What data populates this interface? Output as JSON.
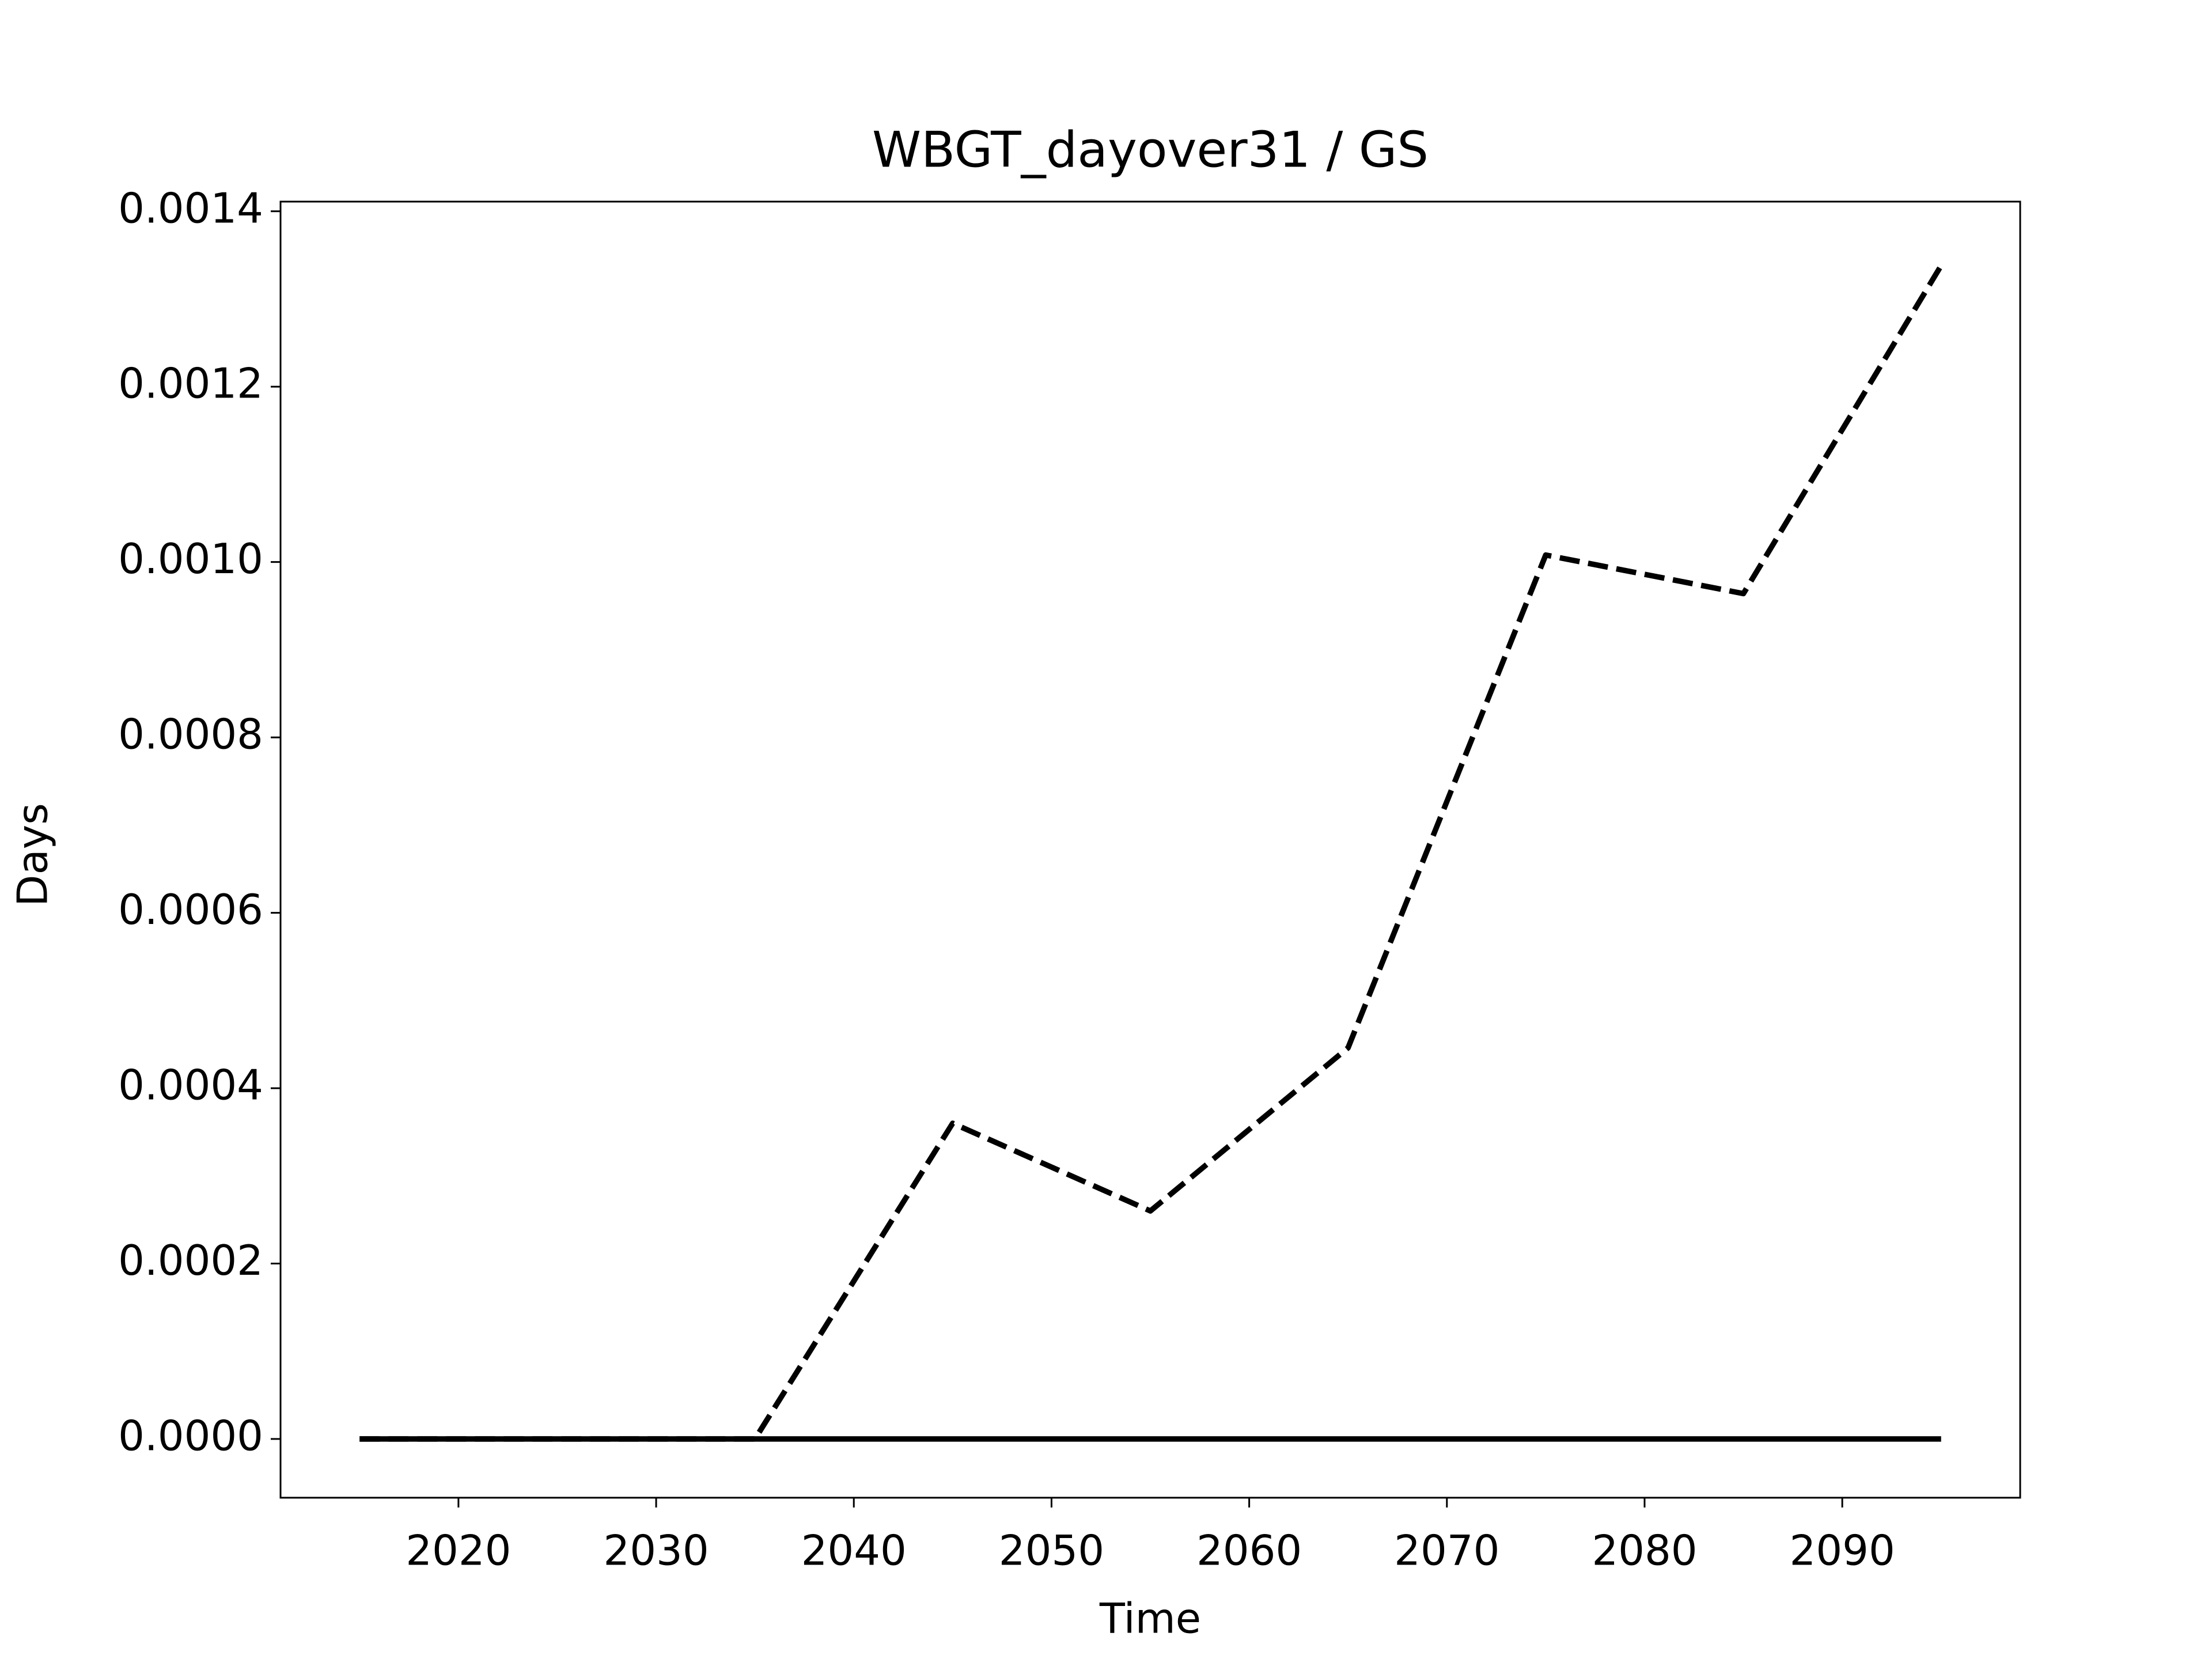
{
  "chart_data": {
    "type": "line",
    "title": "WBGT_dayover31 / GS",
    "xlabel": "Time",
    "ylabel": "Days",
    "x": [
      2015,
      2025,
      2035,
      2045,
      2055,
      2065,
      2075,
      2085,
      2095
    ],
    "series": [
      {
        "color": "#000000",
        "linestyle": "solid",
        "values": [
          0,
          0,
          0,
          0,
          0,
          0,
          0,
          0,
          0
        ]
      },
      {
        "color": "#000000",
        "linestyle": "dashed",
        "values": [
          0,
          0,
          0,
          0.00036,
          0.00026,
          0.000446,
          0.001008,
          0.000964,
          0.001338
        ]
      }
    ],
    "xlim": [
      2011,
      2099
    ],
    "xticks": [
      2020,
      2030,
      2040,
      2050,
      2060,
      2070,
      2080,
      2090
    ],
    "ylim": [
      -6.7e-05,
      0.001411
    ],
    "yticks": [
      {
        "value": 0,
        "label": "0.0000"
      },
      {
        "value": 0.0002,
        "label": "0.0002"
      },
      {
        "value": 0.0004,
        "label": "0.0004"
      },
      {
        "value": 0.0006,
        "label": "0.0006"
      },
      {
        "value": 0.0008,
        "label": "0.0008"
      },
      {
        "value": 0.001,
        "label": "0.0010"
      },
      {
        "value": 0.0012,
        "label": "0.0012"
      },
      {
        "value": 0.0014,
        "label": "0.0014"
      }
    ],
    "grid": false
  }
}
